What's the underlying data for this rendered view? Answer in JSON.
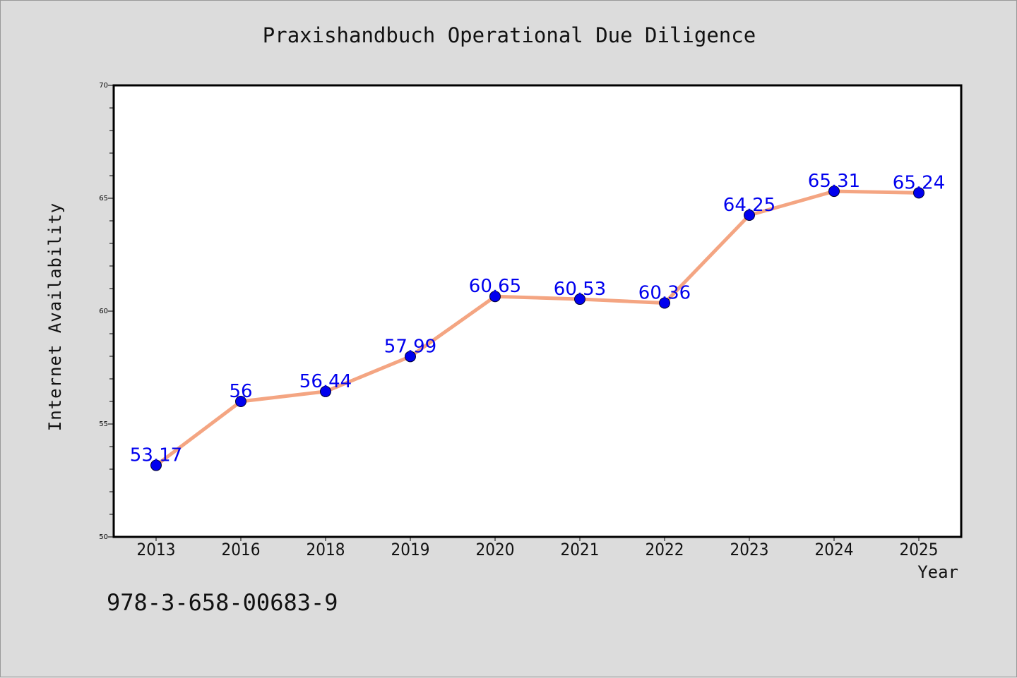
{
  "chart_data": {
    "type": "line",
    "title": "Praxishandbuch Operational Due Diligence",
    "xlabel": "Year",
    "ylabel": "Internet Availability",
    "categories": [
      "2013",
      "2016",
      "2018",
      "2019",
      "2020",
      "2021",
      "2022",
      "2023",
      "2024",
      "2025"
    ],
    "series": [
      {
        "values": [
          53.17,
          56,
          56.44,
          57.99,
          60.65,
          60.53,
          60.36,
          64.25,
          65.31,
          65.24
        ],
        "labels": [
          "53.17",
          "56",
          "56.44",
          "57.99",
          "60.65",
          "60.53",
          "60.36",
          "64.25",
          "65.31",
          "65.24"
        ]
      }
    ],
    "ylim": [
      50,
      70
    ],
    "yticks": [
      "50",
      "55",
      "60",
      "65",
      "70"
    ],
    "grid": false,
    "colors": {
      "line": "#f4a582",
      "marker": "#0000ee",
      "label": "#0000ee"
    }
  },
  "footer": {
    "isbn": "978-3-658-00683-9"
  }
}
